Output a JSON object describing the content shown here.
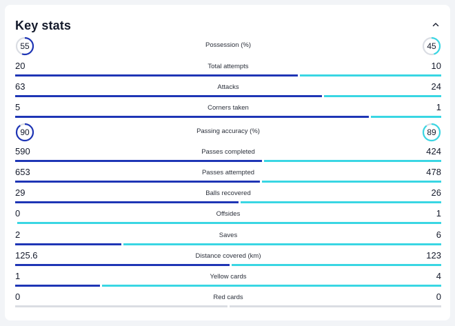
{
  "header": {
    "title": "Key stats"
  },
  "colors": {
    "home": "#1e35b5",
    "away": "#39d6e3",
    "track": "#dadde3"
  },
  "circle_stats": [
    {
      "label": "Possession (%)",
      "home": 55,
      "away": 45
    },
    {
      "label": "Passing accuracy (%)",
      "home": 90,
      "away": 89
    }
  ],
  "stats": [
    {
      "label": "Total attempts",
      "home": "20",
      "away": "10"
    },
    {
      "label": "Attacks",
      "home": "63",
      "away": "24"
    },
    {
      "label": "Corners taken",
      "home": "5",
      "away": "1"
    },
    {
      "label": "Passes completed",
      "home": "590",
      "away": "424"
    },
    {
      "label": "Passes attempted",
      "home": "653",
      "away": "478"
    },
    {
      "label": "Balls recovered",
      "home": "29",
      "away": "26"
    },
    {
      "label": "Offsides",
      "home": "0",
      "away": "1"
    },
    {
      "label": "Saves",
      "home": "2",
      "away": "6"
    },
    {
      "label": "Distance covered (km)",
      "home": "125.6",
      "away": "123"
    },
    {
      "label": "Yellow cards",
      "home": "1",
      "away": "4"
    },
    {
      "label": "Red cards",
      "home": "0",
      "away": "0"
    }
  ]
}
